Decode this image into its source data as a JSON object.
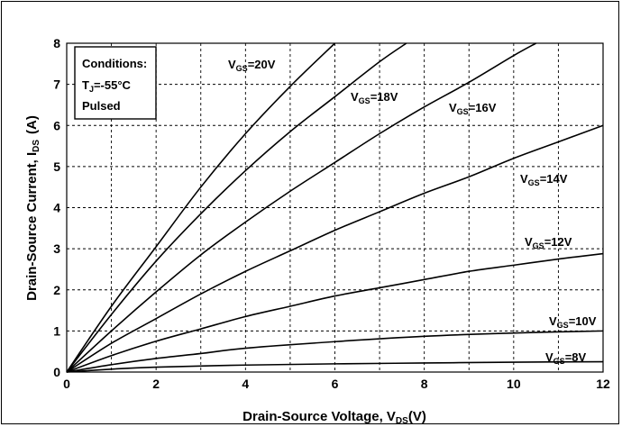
{
  "chart_data": {
    "type": "line",
    "xlabel_main": "Drain-Source Voltage, V",
    "xlabel_sub": "DS",
    "xlabel_tail": "(V)",
    "ylabel_main": "Drain-Source Current, I",
    "ylabel_sub": "DS",
    "ylabel_tail": "(A)",
    "xlim": [
      0,
      12
    ],
    "ylim": [
      0,
      8
    ],
    "x_ticks": [
      "0",
      "2",
      "4",
      "6",
      "8",
      "10",
      "12"
    ],
    "y_ticks": [
      "0",
      "1",
      "2",
      "3",
      "4",
      "5",
      "6",
      "7",
      "8"
    ],
    "grid": true,
    "conditions": {
      "title": "Conditions:",
      "temp_main": "T",
      "temp_sub": "J",
      "temp_tail": "=-55°C",
      "mode": "Pulsed"
    },
    "series": [
      {
        "label_main": "V",
        "label_sub": "GS",
        "label_tail": "=20V",
        "x": [
          0,
          1,
          2,
          3,
          4,
          5,
          6
        ],
        "y": [
          0,
          1.6,
          3.05,
          4.5,
          5.8,
          6.95,
          8.0
        ]
      },
      {
        "label_main": "V",
        "label_sub": "GS",
        "label_tail": "=18V",
        "x": [
          0,
          1,
          2,
          3,
          4,
          5,
          6,
          7,
          7.6
        ],
        "y": [
          0,
          1.4,
          2.7,
          3.85,
          4.9,
          5.85,
          6.7,
          7.55,
          8.0
        ]
      },
      {
        "label_main": "V",
        "label_sub": "GS",
        "label_tail": "=16V",
        "x": [
          0,
          1,
          2,
          3,
          4,
          5,
          6,
          7,
          8,
          9,
          10,
          10.5
        ],
        "y": [
          0,
          1.0,
          1.95,
          2.85,
          3.65,
          4.4,
          5.1,
          5.8,
          6.45,
          7.05,
          7.7,
          8.0
        ]
      },
      {
        "label_main": "V",
        "label_sub": "GS",
        "label_tail": "=14V",
        "x": [
          0,
          1,
          2,
          3,
          4,
          5,
          6,
          7,
          8,
          9,
          10,
          11,
          12
        ],
        "y": [
          0,
          0.7,
          1.3,
          1.9,
          2.45,
          2.95,
          3.45,
          3.9,
          4.35,
          4.75,
          5.2,
          5.6,
          6.0
        ]
      },
      {
        "label_main": "V",
        "label_sub": "GS",
        "label_tail": "=12V",
        "x": [
          0,
          1,
          2,
          3,
          4,
          5,
          6,
          7,
          8,
          9,
          10,
          11,
          12
        ],
        "y": [
          0,
          0.4,
          0.75,
          1.05,
          1.35,
          1.6,
          1.85,
          2.05,
          2.25,
          2.45,
          2.6,
          2.75,
          2.88
        ]
      },
      {
        "label_main": "V",
        "label_sub": "GS",
        "label_tail": "=10V",
        "x": [
          0,
          1,
          2,
          3,
          4,
          6,
          8,
          10,
          12
        ],
        "y": [
          0,
          0.18,
          0.33,
          0.45,
          0.58,
          0.74,
          0.87,
          0.95,
          1.0
        ]
      },
      {
        "label_main": "V",
        "label_sub": "GS",
        "label_tail": "=8V",
        "x": [
          0,
          1,
          2,
          4,
          6,
          8,
          10,
          12
        ],
        "y": [
          0,
          0.07,
          0.12,
          0.17,
          0.2,
          0.22,
          0.24,
          0.25
        ]
      }
    ]
  }
}
